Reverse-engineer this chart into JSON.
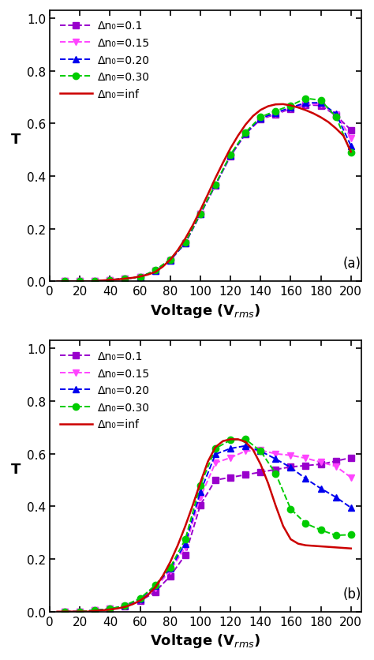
{
  "panel_a": {
    "label": "(a)",
    "series": [
      {
        "label": "Δn₀=0.1",
        "color": "#9900cc",
        "marker": "s",
        "linestyle": "--",
        "x": [
          10,
          20,
          30,
          40,
          50,
          60,
          70,
          80,
          90,
          100,
          110,
          120,
          130,
          140,
          150,
          160,
          170,
          180,
          190,
          200
        ],
        "y": [
          0.0,
          0.0,
          0.0,
          0.005,
          0.01,
          0.015,
          0.04,
          0.08,
          0.145,
          0.255,
          0.365,
          0.475,
          0.56,
          0.615,
          0.635,
          0.655,
          0.67,
          0.668,
          0.63,
          0.575
        ]
      },
      {
        "label": "Δn₀=0.15",
        "color": "#ff44ff",
        "marker": "v",
        "linestyle": "--",
        "x": [
          10,
          20,
          30,
          40,
          50,
          60,
          70,
          80,
          90,
          100,
          110,
          120,
          130,
          140,
          150,
          160,
          170,
          180,
          190,
          200
        ],
        "y": [
          0.0,
          0.0,
          0.0,
          0.005,
          0.01,
          0.015,
          0.04,
          0.08,
          0.145,
          0.255,
          0.365,
          0.478,
          0.562,
          0.618,
          0.638,
          0.658,
          0.673,
          0.673,
          0.635,
          0.545
        ]
      },
      {
        "label": "Δn₀=0.20",
        "color": "#0000ee",
        "marker": "^",
        "linestyle": "--",
        "x": [
          10,
          20,
          30,
          40,
          50,
          60,
          70,
          80,
          90,
          100,
          110,
          120,
          130,
          140,
          150,
          160,
          170,
          180,
          190,
          200
        ],
        "y": [
          0.0,
          0.0,
          0.0,
          0.005,
          0.01,
          0.015,
          0.04,
          0.08,
          0.145,
          0.255,
          0.366,
          0.479,
          0.562,
          0.619,
          0.64,
          0.66,
          0.678,
          0.678,
          0.637,
          0.515
        ]
      },
      {
        "label": "Δn₀=0.30",
        "color": "#00cc00",
        "marker": "o",
        "linestyle": "--",
        "x": [
          10,
          20,
          30,
          40,
          50,
          60,
          70,
          80,
          90,
          100,
          110,
          120,
          130,
          140,
          150,
          160,
          170,
          180,
          190,
          200
        ],
        "y": [
          0.0,
          0.0,
          0.0,
          0.005,
          0.01,
          0.015,
          0.042,
          0.083,
          0.147,
          0.257,
          0.368,
          0.481,
          0.566,
          0.624,
          0.647,
          0.668,
          0.695,
          0.688,
          0.625,
          0.49
        ]
      },
      {
        "label": "Δn₀=inf",
        "color": "#cc0000",
        "marker": null,
        "linestyle": "-",
        "x": [
          5,
          10,
          15,
          20,
          25,
          30,
          35,
          40,
          45,
          50,
          55,
          60,
          65,
          70,
          75,
          80,
          85,
          90,
          95,
          100,
          105,
          110,
          115,
          120,
          125,
          130,
          135,
          140,
          145,
          150,
          155,
          160,
          165,
          170,
          175,
          180,
          185,
          190,
          195,
          200
        ],
        "y": [
          0.0,
          0.0,
          0.0,
          0.0,
          0.0,
          0.0,
          0.003,
          0.005,
          0.007,
          0.01,
          0.013,
          0.018,
          0.025,
          0.035,
          0.055,
          0.082,
          0.118,
          0.162,
          0.213,
          0.27,
          0.33,
          0.392,
          0.45,
          0.505,
          0.553,
          0.595,
          0.628,
          0.651,
          0.665,
          0.672,
          0.673,
          0.668,
          0.66,
          0.65,
          0.638,
          0.623,
          0.605,
          0.581,
          0.553,
          0.492
        ]
      }
    ]
  },
  "panel_b": {
    "label": "(b)",
    "series": [
      {
        "label": "Δn₀=0.1",
        "color": "#9900cc",
        "marker": "s",
        "linestyle": "--",
        "x": [
          10,
          20,
          30,
          40,
          50,
          60,
          70,
          80,
          90,
          100,
          110,
          120,
          130,
          140,
          150,
          160,
          170,
          180,
          190,
          200
        ],
        "y": [
          0.0,
          0.0,
          0.005,
          0.01,
          0.02,
          0.04,
          0.075,
          0.135,
          0.215,
          0.405,
          0.5,
          0.51,
          0.52,
          0.53,
          0.54,
          0.55,
          0.555,
          0.56,
          0.572,
          0.585
        ]
      },
      {
        "label": "Δn₀=0.15",
        "color": "#ff44ff",
        "marker": "v",
        "linestyle": "--",
        "x": [
          10,
          20,
          30,
          40,
          50,
          60,
          70,
          80,
          90,
          100,
          110,
          120,
          130,
          140,
          150,
          160,
          170,
          180,
          190,
          200
        ],
        "y": [
          0.0,
          0.0,
          0.005,
          0.01,
          0.02,
          0.045,
          0.09,
          0.155,
          0.245,
          0.435,
          0.565,
          0.585,
          0.61,
          0.613,
          0.6,
          0.594,
          0.583,
          0.568,
          0.552,
          0.51
        ]
      },
      {
        "label": "Δn₀=0.20",
        "color": "#0000ee",
        "marker": "^",
        "linestyle": "--",
        "x": [
          10,
          20,
          30,
          40,
          50,
          60,
          70,
          80,
          90,
          100,
          110,
          120,
          130,
          140,
          150,
          160,
          170,
          180,
          190,
          200
        ],
        "y": [
          0.0,
          0.0,
          0.005,
          0.01,
          0.022,
          0.048,
          0.097,
          0.163,
          0.258,
          0.455,
          0.598,
          0.62,
          0.63,
          0.61,
          0.58,
          0.548,
          0.505,
          0.468,
          0.435,
          0.395
        ]
      },
      {
        "label": "Δn₀=0.30",
        "color": "#00cc00",
        "marker": "o",
        "linestyle": "--",
        "x": [
          10,
          20,
          30,
          40,
          50,
          60,
          70,
          80,
          90,
          100,
          110,
          120,
          130,
          140,
          150,
          160,
          170,
          180,
          190,
          200
        ],
        "y": [
          0.0,
          0.0,
          0.005,
          0.01,
          0.024,
          0.05,
          0.1,
          0.168,
          0.275,
          0.48,
          0.62,
          0.652,
          0.655,
          0.61,
          0.525,
          0.39,
          0.335,
          0.31,
          0.29,
          0.292
        ]
      },
      {
        "label": "Δn₀=inf",
        "color": "#cc0000",
        "marker": null,
        "linestyle": "-",
        "x": [
          5,
          10,
          15,
          20,
          25,
          30,
          35,
          40,
          45,
          50,
          55,
          60,
          65,
          70,
          75,
          80,
          85,
          90,
          95,
          100,
          105,
          110,
          115,
          120,
          125,
          130,
          135,
          140,
          145,
          150,
          155,
          160,
          165,
          170,
          175,
          180,
          185,
          190,
          195,
          200
        ],
        "y": [
          0.0,
          0.0,
          0.0,
          0.0,
          0.0,
          0.003,
          0.005,
          0.008,
          0.012,
          0.018,
          0.028,
          0.042,
          0.062,
          0.092,
          0.135,
          0.188,
          0.252,
          0.325,
          0.405,
          0.49,
          0.57,
          0.625,
          0.648,
          0.655,
          0.655,
          0.645,
          0.615,
          0.56,
          0.488,
          0.403,
          0.325,
          0.275,
          0.258,
          0.252,
          0.25,
          0.248,
          0.246,
          0.244,
          0.242,
          0.24
        ]
      }
    ]
  },
  "xlabel": "Voltage (V$_{rms}$)",
  "ylabel": "T",
  "xlim": [
    0,
    207
  ],
  "ylim": [
    0.0,
    1.03
  ],
  "xticks": [
    0,
    20,
    40,
    60,
    80,
    100,
    120,
    140,
    160,
    180,
    200
  ],
  "yticks": [
    0.0,
    0.2,
    0.4,
    0.6,
    0.8,
    1.0
  ]
}
